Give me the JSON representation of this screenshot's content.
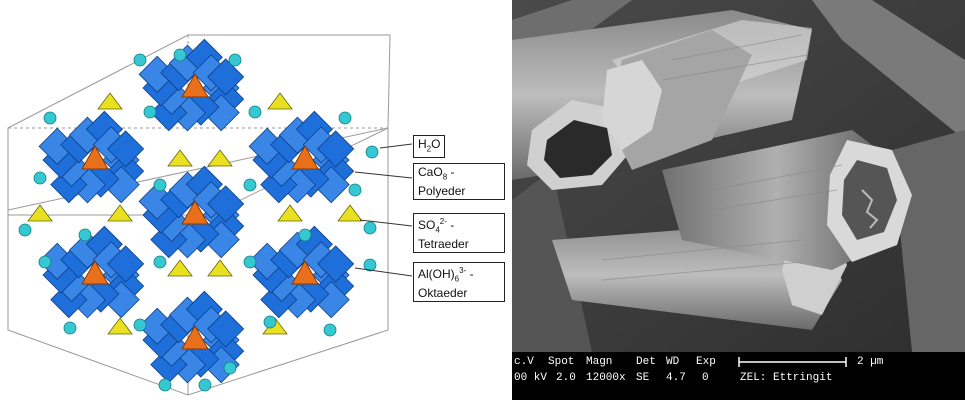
{
  "labels": {
    "h2o": {
      "base": "H",
      "sub": "2",
      "tail": "O"
    },
    "cao8": {
      "base": "CaO",
      "sub": "8",
      "tail": " -",
      "line2": "Polyeder"
    },
    "so4": {
      "base": "SO",
      "sub": "4",
      "sup": "2-",
      "tail": " -",
      "line2": "Tetraeder"
    },
    "aloh6": {
      "base": "Al(OH)",
      "sub": "6",
      "sup": "3-",
      "tail": " -",
      "line2": "Oktaeder"
    }
  },
  "sem": {
    "headers": [
      "c.V",
      "Spot",
      "Magn",
      "Det",
      "WD",
      "Exp"
    ],
    "values": [
      "00 kV",
      "2.0",
      "12000x",
      "SE",
      "4.7",
      "0"
    ],
    "label": "ZEL: Ettringit",
    "scale": "2 µm"
  },
  "colors": {
    "octahedra": "#1e6fd9",
    "central": "#e8701a",
    "tetrahedra": "#e8e020",
    "water": "#35c8d0"
  }
}
